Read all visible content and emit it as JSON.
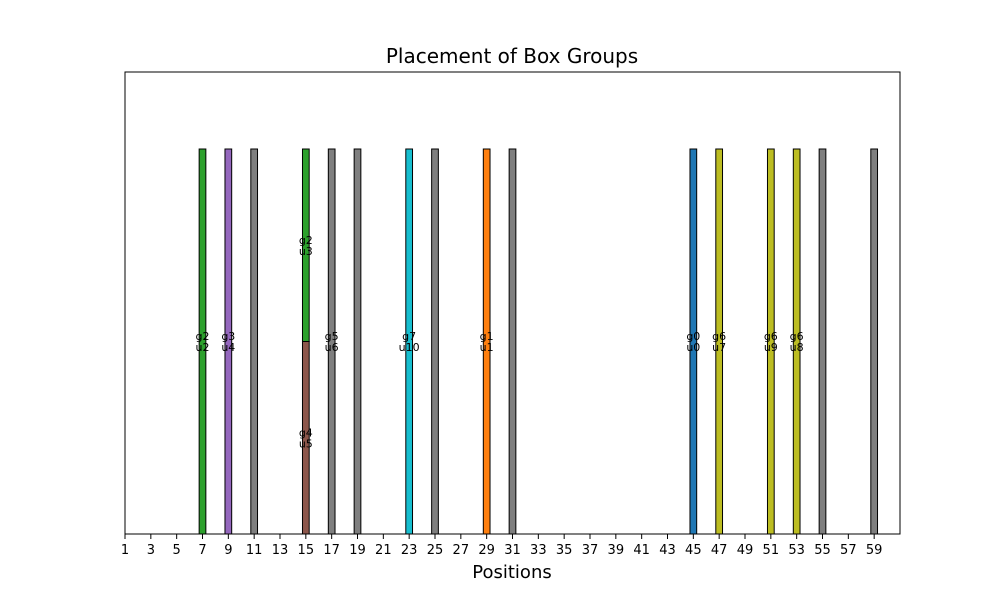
{
  "chart_data": {
    "type": "bar",
    "title": "Placement of Box Groups",
    "xlabel": "Positions",
    "ylabel": "",
    "xlim": [
      1,
      61
    ],
    "ylim": [
      0,
      1.2
    ],
    "xticks": [
      1,
      3,
      5,
      7,
      9,
      11,
      13,
      15,
      17,
      19,
      21,
      23,
      25,
      27,
      29,
      31,
      33,
      35,
      37,
      39,
      41,
      43,
      45,
      47,
      49,
      51,
      53,
      55,
      57,
      59
    ],
    "bar_width": 1,
    "bars": [
      {
        "x": 7,
        "bottom": 0,
        "height": 1,
        "color": "#2ca02c",
        "label": [
          "g2",
          "u2"
        ]
      },
      {
        "x": 9,
        "bottom": 0,
        "height": 1,
        "color": "#9467bd",
        "label": [
          "g3",
          "u4"
        ]
      },
      {
        "x": 11,
        "bottom": 0,
        "height": 1,
        "color": "#7f7f7f",
        "label": []
      },
      {
        "x": 15,
        "bottom": 0,
        "height": 0.5,
        "color": "#8c564b",
        "label": [
          "g4",
          "u5"
        ]
      },
      {
        "x": 15,
        "bottom": 0.5,
        "height": 0.5,
        "color": "#2ca02c",
        "label": [
          "g2",
          "u3"
        ]
      },
      {
        "x": 17,
        "bottom": 0,
        "height": 1,
        "color": "#7f7f7f",
        "label": [
          "g5",
          "u6"
        ]
      },
      {
        "x": 19,
        "bottom": 0,
        "height": 1,
        "color": "#7f7f7f",
        "label": []
      },
      {
        "x": 23,
        "bottom": 0,
        "height": 1,
        "color": "#17becf",
        "label": [
          "g7",
          "u10"
        ]
      },
      {
        "x": 25,
        "bottom": 0,
        "height": 1,
        "color": "#7f7f7f",
        "label": []
      },
      {
        "x": 29,
        "bottom": 0,
        "height": 1,
        "color": "#ff7f0e",
        "label": [
          "g1",
          "u1"
        ]
      },
      {
        "x": 31,
        "bottom": 0,
        "height": 1,
        "color": "#7f7f7f",
        "label": []
      },
      {
        "x": 45,
        "bottom": 0,
        "height": 1,
        "color": "#1f77b4",
        "label": [
          "g0",
          "u0"
        ]
      },
      {
        "x": 47,
        "bottom": 0,
        "height": 1,
        "color": "#bcbd22",
        "label": [
          "g6",
          "u7"
        ]
      },
      {
        "x": 51,
        "bottom": 0,
        "height": 1,
        "color": "#bcbd22",
        "label": [
          "g6",
          "u9"
        ]
      },
      {
        "x": 53,
        "bottom": 0,
        "height": 1,
        "color": "#bcbd22",
        "label": [
          "g6",
          "u8"
        ]
      },
      {
        "x": 55,
        "bottom": 0,
        "height": 1,
        "color": "#7f7f7f",
        "label": []
      },
      {
        "x": 59,
        "bottom": 0,
        "height": 1,
        "color": "#7f7f7f",
        "label": []
      }
    ]
  }
}
